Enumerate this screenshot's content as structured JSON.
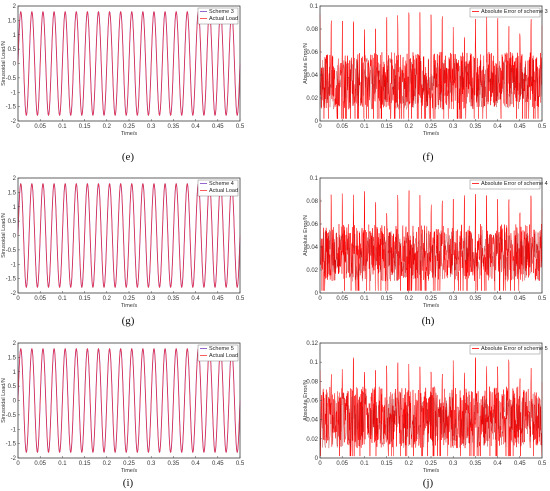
{
  "colors": {
    "scheme_series": "#7a3fc2",
    "actual_load": "#ff3333",
    "abs_error": "#ff0000",
    "abs_error_dark": "#b01010",
    "axis": "#444444"
  },
  "chart_data": [
    {
      "panel": "(e)",
      "type": "line",
      "xlabel": "Time/s",
      "ylabel": "Sinusoidal Load/N",
      "xlim": [
        0,
        0.5
      ],
      "ylim": [
        -2,
        2
      ],
      "xticks": [
        "0",
        "0.05",
        "0.1",
        "0.15",
        "0.2",
        "0.25",
        "0.3",
        "0.35",
        "0.4",
        "0.45",
        "0.5"
      ],
      "yticks": [
        "2",
        "1.5",
        "1",
        "0.5",
        "0",
        "-0.5",
        "-1",
        "-1.5",
        "-2"
      ],
      "ytick_values": [
        2,
        1.5,
        1,
        0.5,
        0,
        -0.5,
        -1,
        -1.5,
        -2
      ],
      "grid": false,
      "legend_position": "top-right",
      "series": [
        {
          "name": "Scheme 3",
          "signal": "sine",
          "amplitude": 1.8,
          "frequency_hz": 40
        },
        {
          "name": "Actual Load",
          "signal": "sine",
          "amplitude": 1.8,
          "frequency_hz": 40
        }
      ]
    },
    {
      "panel": "(f)",
      "type": "line",
      "xlabel": "Time/s",
      "ylabel": "Absolute Error/N",
      "xlim": [
        0,
        0.5
      ],
      "ylim": [
        0,
        0.1
      ],
      "xticks": [
        "0",
        "0.05",
        "0.1",
        "0.15",
        "0.2",
        "0.25",
        "0.3",
        "0.35",
        "0.4",
        "0.45",
        "0.5"
      ],
      "yticks": [
        "0.1",
        "0.08",
        "0.06",
        "0.04",
        "0.02",
        "0"
      ],
      "ytick_values": [
        0.1,
        0.08,
        0.06,
        0.04,
        0.02,
        0
      ],
      "grid": false,
      "legend_position": "top-right",
      "series": [
        {
          "name": "Absolute Error of scheme 3",
          "signal": "noise",
          "typical_peak": 0.09,
          "band": [
            0.01,
            0.06
          ],
          "seed": 3
        }
      ]
    },
    {
      "panel": "(g)",
      "type": "line",
      "xlabel": "Time/s",
      "ylabel": "Sinusoidal Load/N",
      "xlim": [
        0,
        0.5
      ],
      "ylim": [
        -2,
        2
      ],
      "xticks": [
        "0",
        "0.05",
        "0.1",
        "0.15",
        "0.2",
        "0.25",
        "0.3",
        "0.35",
        "0.4",
        "0.45",
        "0.5"
      ],
      "yticks": [
        "2",
        "1.5",
        "1",
        "0.5",
        "0",
        "-0.5",
        "-1",
        "-1.5",
        "-2"
      ],
      "ytick_values": [
        2,
        1.5,
        1,
        0.5,
        0,
        -0.5,
        -1,
        -1.5,
        -2
      ],
      "grid": false,
      "legend_position": "top-right",
      "series": [
        {
          "name": "Scheme 4",
          "signal": "sine",
          "amplitude": 1.8,
          "frequency_hz": 40
        },
        {
          "name": "Actual Load",
          "signal": "sine",
          "amplitude": 1.8,
          "frequency_hz": 40
        }
      ]
    },
    {
      "panel": "(h)",
      "type": "line",
      "xlabel": "Time/s",
      "ylabel": "Absolute Error/N",
      "xlim": [
        0,
        0.5
      ],
      "ylim": [
        0,
        0.1
      ],
      "xticks": [
        "0",
        "0.05",
        "0.1",
        "0.15",
        "0.2",
        "0.25",
        "0.3",
        "0.35",
        "0.4",
        "0.45",
        "0.5"
      ],
      "yticks": [
        "0.1",
        "0.08",
        "0.06",
        "0.04",
        "0.02",
        "0"
      ],
      "ytick_values": [
        0.1,
        0.08,
        0.06,
        0.04,
        0.02,
        0
      ],
      "grid": false,
      "legend_position": "top-right",
      "series": [
        {
          "name": "Absolute Error of scheme 4",
          "signal": "noise",
          "typical_peak": 0.085,
          "band": [
            0.01,
            0.06
          ],
          "seed": 4
        }
      ]
    },
    {
      "panel": "(i)",
      "type": "line",
      "xlabel": "Time/s",
      "ylabel": "Sinusoidal Load/N",
      "xlim": [
        0,
        0.5
      ],
      "ylim": [
        -2,
        2
      ],
      "xticks": [
        "0",
        "0.05",
        "0.1",
        "0.15",
        "0.2",
        "0.25",
        "0.3",
        "0.35",
        "0.4",
        "0.45",
        "0.5"
      ],
      "yticks": [
        "2",
        "1.5",
        "1",
        "0.5",
        "0",
        "-0.5",
        "-1",
        "-1.5",
        "-2"
      ],
      "ytick_values": [
        2,
        1.5,
        1,
        0.5,
        0,
        -0.5,
        -1,
        -1.5,
        -2
      ],
      "grid": false,
      "legend_position": "top-right",
      "series": [
        {
          "name": "Scheme 5",
          "signal": "sine",
          "amplitude": 1.8,
          "frequency_hz": 40
        },
        {
          "name": "Actual Load",
          "signal": "sine",
          "amplitude": 1.8,
          "frequency_hz": 40
        }
      ]
    },
    {
      "panel": "(j)",
      "type": "line",
      "xlabel": "Time/s",
      "ylabel": "Absolute Error/N",
      "xlim": [
        0,
        0.5
      ],
      "ylim": [
        0,
        0.12
      ],
      "xticks": [
        "0",
        "0.05",
        "0.1",
        "0.15",
        "0.2",
        "0.25",
        "0.3",
        "0.35",
        "0.4",
        "0.45",
        "0.5"
      ],
      "yticks": [
        "0.12",
        "0.1",
        "0.08",
        "0.06",
        "0.04",
        "0.02",
        "0"
      ],
      "ytick_values": [
        0.12,
        0.1,
        0.08,
        0.06,
        0.04,
        0.02,
        0
      ],
      "grid": false,
      "legend_position": "top-right",
      "series": [
        {
          "name": "Absolute Error of scheme 5",
          "signal": "noise",
          "typical_peak": 0.1,
          "band": [
            0.01,
            0.075
          ],
          "seed": 5
        }
      ]
    }
  ]
}
